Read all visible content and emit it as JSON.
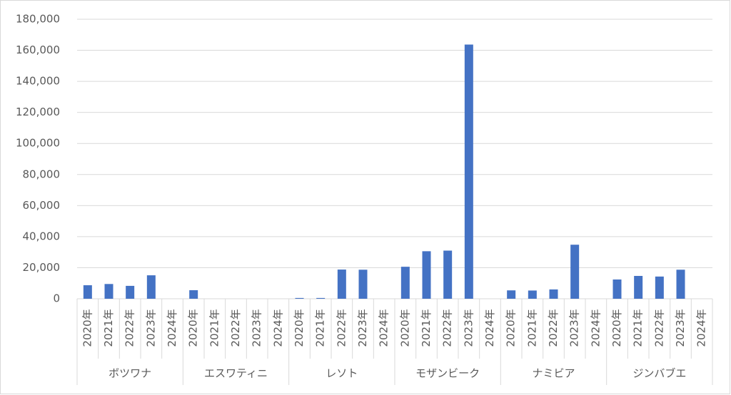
{
  "chart_data": {
    "type": "bar",
    "color": "#4472c4",
    "grid": true,
    "groups": [
      {
        "name": "ボツワナ",
        "categories": [
          "2020年",
          "2021年",
          "2022年",
          "2023年",
          "2024年"
        ],
        "values": [
          8700,
          9500,
          8300,
          15100,
          null
        ]
      },
      {
        "name": "エスワティニ",
        "categories": [
          "2020年",
          "2021年",
          "2022年",
          "2023年",
          "2024年"
        ],
        "values": [
          5500,
          null,
          null,
          null,
          null
        ]
      },
      {
        "name": "レソト",
        "categories": [
          "2020年",
          "2021年",
          "2022年",
          "2023年",
          "2024年"
        ],
        "values": [
          500,
          500,
          18800,
          18700,
          null
        ]
      },
      {
        "name": "モザンビーク",
        "categories": [
          "2020年",
          "2021年",
          "2022年",
          "2023年",
          "2024年"
        ],
        "values": [
          20600,
          30600,
          31000,
          163700,
          null
        ]
      },
      {
        "name": "ナミビア",
        "categories": [
          "2020年",
          "2021年",
          "2022年",
          "2023年",
          "2024年"
        ],
        "values": [
          5400,
          5300,
          6000,
          34800,
          null
        ]
      },
      {
        "name": "ジンバブエ",
        "categories": [
          "2020年",
          "2021年",
          "2022年",
          "2023年",
          "2024年"
        ],
        "values": [
          12400,
          14700,
          14300,
          18700,
          null
        ]
      }
    ],
    "ylim": [
      0,
      180000
    ],
    "yticks": [
      0,
      {
        "value": 20000,
        "label": "20,000"
      },
      {
        "value": 40000,
        "label": "40,000"
      },
      {
        "value": 60000,
        "label": "60,000"
      },
      {
        "value": 80000,
        "label": "80,000"
      },
      {
        "value": 100000,
        "label": "100,000"
      },
      {
        "value": 120000,
        "label": "120,000"
      },
      {
        "value": 140000,
        "label": "140,000"
      },
      {
        "value": 160000,
        "label": "160,000"
      },
      {
        "value": 180000,
        "label": "180,000"
      }
    ]
  }
}
